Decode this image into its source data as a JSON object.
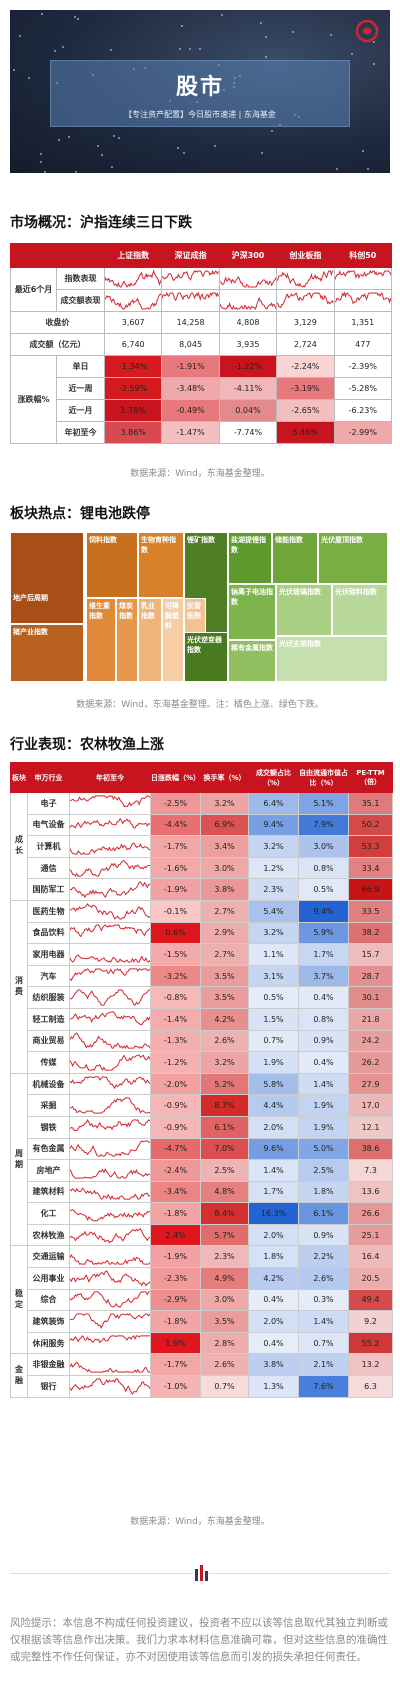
{
  "banner": {
    "title": "股市",
    "subtitle": "【专注资产配置】今日股市速递 | 东海基金"
  },
  "section1": {
    "title": "市场概况：沪指连续三日下跌",
    "source": "数据来源：Wind，东海基金整理。"
  },
  "market": {
    "headers": [
      "",
      "",
      "上证指数",
      "深证成指",
      "沪深300",
      "创业板指",
      "科创50"
    ],
    "trend_label": "最近6个月",
    "row_index_perf": "指数表现",
    "row_volume_perf": "成交额表现",
    "row_close": "收盘价",
    "row_turnover": "成交额（亿元）",
    "change_label": "涨跌幅%",
    "close": [
      "3,607",
      "14,258",
      "4,808",
      "3,129",
      "1,351"
    ],
    "turnover": [
      "6,740",
      "8,045",
      "3,935",
      "2,724",
      "477"
    ],
    "changes": [
      {
        "label": "单日",
        "values": [
          "-1.34%",
          "-1.91%",
          "-1.22%",
          "-2.24%",
          "-2.39%"
        ],
        "colors": [
          "#d71920",
          "#e7787c",
          "#c8141e",
          "#fad3d4",
          "#ffffff"
        ]
      },
      {
        "label": "近一周",
        "values": [
          "-2.59%",
          "-3.48%",
          "-4.11%",
          "-3.19%",
          "-5.28%"
        ],
        "colors": [
          "#d71920",
          "#f0a8ab",
          "#f2b7b9",
          "#e7787c",
          "#ffffff"
        ]
      },
      {
        "label": "近一月",
        "values": [
          "1.78%",
          "-0.49%",
          "0.04%",
          "-2.65%",
          "-6.23%"
        ],
        "colors": [
          "#c8141e",
          "#e7787c",
          "#e38a8d",
          "#f3bfc1",
          "#ffffff"
        ]
      },
      {
        "label": "年初至今",
        "values": [
          "3.86%",
          "-1.47%",
          "-7.74%",
          "5.46%",
          "-2.99%"
        ],
        "colors": [
          "#d94a50",
          "#f3bfc1",
          "#ffffff",
          "#c8141e",
          "#f0a8ab"
        ]
      }
    ]
  },
  "section2": {
    "title": "板块热点：锂电池跌停",
    "source": "数据来源：Wind，东海基金整理。注：橘色上涨、绿色下跌。"
  },
  "treemap": [
    {
      "label": "地产后周期",
      "color": "#a84f17"
    },
    {
      "label": "猪产业指数",
      "color": "#b8601d"
    },
    {
      "label": "饲料指数",
      "color": "#c9701f"
    },
    {
      "label": "生物育种指数",
      "color": "#d9802a"
    },
    {
      "label": "锂矿指数",
      "color": "#4e7f23"
    },
    {
      "label": "盐湖提锂指数",
      "color": "#5f9a2e"
    },
    {
      "label": "储能指数",
      "color": "#6ea63a"
    },
    {
      "label": "光伏屋顶指数",
      "color": "#78ae44"
    },
    {
      "label": "维生素指数",
      "color": "#e0893a"
    },
    {
      "label": "煤炭指数",
      "color": "#e6974c"
    },
    {
      "label": "乳业指数",
      "color": "#f0b37a"
    },
    {
      "label": "可降解塑料",
      "color": "#f6cda5"
    },
    {
      "label": "民营医院",
      "color": "#f3c194"
    },
    {
      "label": "光伏逆变器指数",
      "color": "#4a7a20"
    },
    {
      "label": "钠离子电池指数",
      "color": "#7eb44c"
    },
    {
      "label": "稀有金属指数",
      "color": "#8fbf5e"
    },
    {
      "label": "光伏玻璃指数",
      "color": "#a9cf83"
    },
    {
      "label": "光伏硅料指数",
      "color": "#b8d79a"
    },
    {
      "label": "光伏支架指数",
      "color": "#c6dfae"
    }
  ],
  "section3": {
    "title": "行业表现：农林牧渔上涨",
    "source": "数据来源：Wind，东海基金整理。",
    "headers": [
      "板块",
      "申万行业",
      "年初至今",
      "日涨跌幅（%）",
      "换手率（%）",
      "成交额占比（%）",
      "自由流通市值占比（%）",
      "PE-TTM（倍）"
    ]
  },
  "industries": [
    {
      "group": "成长",
      "rows": [
        {
          "name": "电子",
          "chg": "-2.5%",
          "turn": "3.2%",
          "vol": "6.4%",
          "mcap": "5.1%",
          "pe": "35.1"
        },
        {
          "name": "电气设备",
          "chg": "-4.4%",
          "turn": "6.9%",
          "vol": "9.4%",
          "mcap": "7.9%",
          "pe": "50.2"
        },
        {
          "name": "计算机",
          "chg": "-1.7%",
          "turn": "3.4%",
          "vol": "3.2%",
          "mcap": "3.0%",
          "pe": "53.3"
        },
        {
          "name": "通信",
          "chg": "-1.6%",
          "turn": "3.0%",
          "vol": "1.2%",
          "mcap": "0.8%",
          "pe": "33.4"
        },
        {
          "name": "国防军工",
          "chg": "-1.9%",
          "turn": "3.8%",
          "vol": "2.3%",
          "mcap": "0.5%",
          "pe": "66.9"
        }
      ]
    },
    {
      "group": "消费",
      "rows": [
        {
          "name": "医药生物",
          "chg": "-0.1%",
          "turn": "2.7%",
          "vol": "5.4%",
          "mcap": "9.4%",
          "pe": "33.5"
        },
        {
          "name": "食品饮料",
          "chg": "0.6%",
          "turn": "2.9%",
          "vol": "3.2%",
          "mcap": "5.9%",
          "pe": "38.2"
        },
        {
          "name": "家用电器",
          "chg": "-1.5%",
          "turn": "2.7%",
          "vol": "1.1%",
          "mcap": "1.7%",
          "pe": "15.7"
        },
        {
          "name": "汽车",
          "chg": "-3.2%",
          "turn": "3.5%",
          "vol": "3.1%",
          "mcap": "3.7%",
          "pe": "28.7"
        },
        {
          "name": "纺织服装",
          "chg": "-0.8%",
          "turn": "3.5%",
          "vol": "0.5%",
          "mcap": "0.4%",
          "pe": "30.1"
        },
        {
          "name": "轻工制造",
          "chg": "-1.4%",
          "turn": "4.2%",
          "vol": "1.5%",
          "mcap": "0.8%",
          "pe": "21.8"
        },
        {
          "name": "商业贸易",
          "chg": "-1.3%",
          "turn": "2.6%",
          "vol": "0.7%",
          "mcap": "0.9%",
          "pe": "24.2"
        },
        {
          "name": "传媒",
          "chg": "-1.2%",
          "turn": "3.2%",
          "vol": "1.9%",
          "mcap": "0.4%",
          "pe": "26.2"
        }
      ]
    },
    {
      "group": "周期",
      "rows": [
        {
          "name": "机械设备",
          "chg": "-2.0%",
          "turn": "5.2%",
          "vol": "5.8%",
          "mcap": "1.4%",
          "pe": "27.9"
        },
        {
          "name": "采掘",
          "chg": "-0.9%",
          "turn": "8.7%",
          "vol": "4.4%",
          "mcap": "1.9%",
          "pe": "17.0"
        },
        {
          "name": "钢铁",
          "chg": "-0.9%",
          "turn": "6.1%",
          "vol": "2.0%",
          "mcap": "1.9%",
          "pe": "12.1"
        },
        {
          "name": "有色金属",
          "chg": "-4.7%",
          "turn": "7.0%",
          "vol": "9.6%",
          "mcap": "5.0%",
          "pe": "38.6"
        },
        {
          "name": "房地产",
          "chg": "-2.4%",
          "turn": "2.5%",
          "vol": "1.4%",
          "mcap": "2.5%",
          "pe": "7.3"
        },
        {
          "name": "建筑材料",
          "chg": "-3.4%",
          "turn": "4.8%",
          "vol": "1.7%",
          "mcap": "1.8%",
          "pe": "13.6"
        },
        {
          "name": "化工",
          "chg": "-1.8%",
          "turn": "8.4%",
          "vol": "16.3%",
          "mcap": "6.1%",
          "pe": "26.6"
        },
        {
          "name": "农林牧渔",
          "chg": "2.4%",
          "turn": "5.7%",
          "vol": "2.0%",
          "mcap": "0.9%",
          "pe": "25.1"
        }
      ]
    },
    {
      "group": "稳定",
      "rows": [
        {
          "name": "交通运输",
          "chg": "-1.9%",
          "turn": "2.3%",
          "vol": "1.8%",
          "mcap": "2.2%",
          "pe": "16.4"
        },
        {
          "name": "公用事业",
          "chg": "-2.3%",
          "turn": "4.9%",
          "vol": "4.2%",
          "mcap": "2.6%",
          "pe": "20.5"
        },
        {
          "name": "综合",
          "chg": "-2.9%",
          "turn": "3.0%",
          "vol": "0.4%",
          "mcap": "0.3%",
          "pe": "49.4"
        },
        {
          "name": "建筑装饰",
          "chg": "-1.8%",
          "turn": "3.5%",
          "vol": "2.0%",
          "mcap": "1.4%",
          "pe": "9.2"
        },
        {
          "name": "休闲服务",
          "chg": "1.6%",
          "turn": "2.8%",
          "vol": "0.4%",
          "mcap": "0.7%",
          "pe": "55.2"
        }
      ]
    },
    {
      "group": "金融",
      "rows": [
        {
          "name": "非银金融",
          "chg": "-1.7%",
          "turn": "2.6%",
          "vol": "3.8%",
          "mcap": "2.1%",
          "pe": "13.2"
        },
        {
          "name": "银行",
          "chg": "-1.0%",
          "turn": "0.7%",
          "vol": "1.3%",
          "mcap": "7.6%",
          "pe": "6.3"
        }
      ]
    }
  ],
  "disclaimer": "风险提示：本信息不构成任何投资建议，投资者不应以该等信息取代其独立判断或仅根据该等信息作出决策。我们力求本材料信息准确可靠，但对这些信息的准确性或完整性不作任何保证，亦不对因使用该等信息而引发的损失承担任何责任。"
}
